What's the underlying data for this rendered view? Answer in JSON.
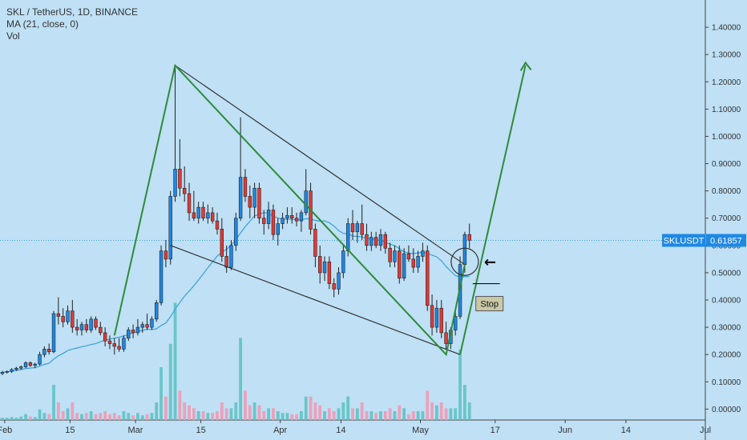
{
  "legend": {
    "title": "SKL / TetherUS, 1D, BINANCE",
    "ma": "MA (21, close, 0)",
    "vol": "Vol"
  },
  "colors": {
    "background": "#bfe0f5",
    "up": "#1e88e5",
    "down": "#e53935",
    "ma": "#3aa0d8",
    "trend": "#2e8b3a",
    "wedge": "#333333",
    "vol_up": "#5fc3c3",
    "vol_down": "#f29ab5"
  },
  "chart_data": {
    "type": "candlestick",
    "symbol": "SKLUSDT",
    "last_price": 0.61857,
    "last_price_label": "0.61857",
    "ylim": [
      -0.04,
      1.5
    ],
    "y_ticks": [
      0.0,
      0.1,
      0.2,
      0.3,
      0.4,
      0.5,
      0.6,
      0.7,
      0.8,
      0.9,
      1.0,
      1.1,
      1.2,
      1.3,
      1.4
    ],
    "y_tick_labels": [
      "0.00000",
      "0.10000",
      "0.20000",
      "0.30000",
      "0.40000",
      "0.50000",
      "0.60000",
      "0.70000",
      "0.80000",
      "0.90000",
      "1.00000",
      "1.10000",
      "1.20000",
      "1.30000",
      "1.40000"
    ],
    "x_ticks": [
      {
        "label": "Feb",
        "date": "2021-02-01"
      },
      {
        "label": "15",
        "date": "2021-02-15"
      },
      {
        "label": "Mar",
        "date": "2021-03-01"
      },
      {
        "label": "15",
        "date": "2021-03-15"
      },
      {
        "label": "Apr",
        "date": "2021-04-01"
      },
      {
        "label": "14",
        "date": "2021-04-14"
      },
      {
        "label": "May",
        "date": "2021-05-01"
      },
      {
        "label": "17",
        "date": "2021-05-17"
      },
      {
        "label": "Jun",
        "date": "2021-06-01"
      },
      {
        "label": "14",
        "date": "2021-06-14"
      },
      {
        "label": "Jul",
        "date": "2021-07-01"
      }
    ],
    "x_range": [
      "2021-01-31",
      "2021-07-01"
    ],
    "dates": [],
    "candles": [
      [
        0.13,
        0.14,
        0.125,
        0.135
      ],
      [
        0.135,
        0.142,
        0.13,
        0.138
      ],
      [
        0.138,
        0.15,
        0.133,
        0.145
      ],
      [
        0.145,
        0.155,
        0.14,
        0.15
      ],
      [
        0.15,
        0.16,
        0.145,
        0.155
      ],
      [
        0.155,
        0.175,
        0.15,
        0.17
      ],
      [
        0.17,
        0.175,
        0.155,
        0.16
      ],
      [
        0.16,
        0.17,
        0.15,
        0.165
      ],
      [
        0.165,
        0.21,
        0.16,
        0.2
      ],
      [
        0.2,
        0.23,
        0.19,
        0.22
      ],
      [
        0.22,
        0.24,
        0.2,
        0.21
      ],
      [
        0.21,
        0.36,
        0.205,
        0.35
      ],
      [
        0.35,
        0.41,
        0.31,
        0.34
      ],
      [
        0.34,
        0.37,
        0.3,
        0.32
      ],
      [
        0.32,
        0.38,
        0.31,
        0.36
      ],
      [
        0.36,
        0.4,
        0.28,
        0.3
      ],
      [
        0.3,
        0.33,
        0.27,
        0.29
      ],
      [
        0.29,
        0.32,
        0.27,
        0.31
      ],
      [
        0.31,
        0.33,
        0.28,
        0.29
      ],
      [
        0.29,
        0.34,
        0.28,
        0.33
      ],
      [
        0.33,
        0.34,
        0.29,
        0.3
      ],
      [
        0.3,
        0.32,
        0.27,
        0.28
      ],
      [
        0.28,
        0.3,
        0.23,
        0.25
      ],
      [
        0.25,
        0.27,
        0.22,
        0.24
      ],
      [
        0.24,
        0.26,
        0.2,
        0.23
      ],
      [
        0.23,
        0.26,
        0.21,
        0.22
      ],
      [
        0.22,
        0.27,
        0.21,
        0.26
      ],
      [
        0.26,
        0.3,
        0.25,
        0.29
      ],
      [
        0.29,
        0.31,
        0.26,
        0.28
      ],
      [
        0.28,
        0.33,
        0.27,
        0.3
      ],
      [
        0.3,
        0.32,
        0.28,
        0.31
      ],
      [
        0.31,
        0.35,
        0.29,
        0.3
      ],
      [
        0.3,
        0.34,
        0.29,
        0.33
      ],
      [
        0.33,
        0.4,
        0.32,
        0.39
      ],
      [
        0.39,
        0.6,
        0.38,
        0.58
      ],
      [
        0.58,
        0.62,
        0.52,
        0.55
      ],
      [
        0.55,
        0.8,
        0.53,
        0.78
      ],
      [
        0.78,
        1.26,
        0.76,
        0.88
      ],
      [
        0.88,
        0.99,
        0.78,
        0.81
      ],
      [
        0.81,
        0.89,
        0.76,
        0.79
      ],
      [
        0.79,
        0.83,
        0.69,
        0.72
      ],
      [
        0.72,
        0.8,
        0.69,
        0.7
      ],
      [
        0.7,
        0.76,
        0.68,
        0.74
      ],
      [
        0.74,
        0.76,
        0.69,
        0.7
      ],
      [
        0.7,
        0.75,
        0.68,
        0.72
      ],
      [
        0.72,
        0.74,
        0.68,
        0.69
      ],
      [
        0.69,
        0.72,
        0.64,
        0.66
      ],
      [
        0.66,
        0.7,
        0.54,
        0.56
      ],
      [
        0.56,
        0.6,
        0.5,
        0.52
      ],
      [
        0.52,
        0.62,
        0.51,
        0.6
      ],
      [
        0.6,
        0.72,
        0.58,
        0.7
      ],
      [
        0.7,
        1.07,
        0.69,
        0.85
      ],
      [
        0.85,
        0.88,
        0.76,
        0.78
      ],
      [
        0.78,
        0.82,
        0.7,
        0.74
      ],
      [
        0.74,
        0.83,
        0.7,
        0.81
      ],
      [
        0.81,
        0.83,
        0.68,
        0.7
      ],
      [
        0.7,
        0.73,
        0.64,
        0.68
      ],
      [
        0.68,
        0.76,
        0.66,
        0.73
      ],
      [
        0.73,
        0.75,
        0.62,
        0.64
      ],
      [
        0.64,
        0.7,
        0.6,
        0.68
      ],
      [
        0.68,
        0.72,
        0.66,
        0.7
      ],
      [
        0.7,
        0.74,
        0.68,
        0.71
      ],
      [
        0.71,
        0.74,
        0.68,
        0.7
      ],
      [
        0.7,
        0.72,
        0.67,
        0.69
      ],
      [
        0.69,
        0.73,
        0.65,
        0.72
      ],
      [
        0.72,
        0.88,
        0.71,
        0.8
      ],
      [
        0.8,
        0.83,
        0.64,
        0.66
      ],
      [
        0.66,
        0.68,
        0.52,
        0.56
      ],
      [
        0.56,
        0.6,
        0.46,
        0.5
      ],
      [
        0.5,
        0.56,
        0.47,
        0.54
      ],
      [
        0.54,
        0.56,
        0.44,
        0.46
      ],
      [
        0.46,
        0.48,
        0.41,
        0.44
      ],
      [
        0.44,
        0.52,
        0.42,
        0.5
      ],
      [
        0.5,
        0.6,
        0.48,
        0.58
      ],
      [
        0.58,
        0.7,
        0.56,
        0.68
      ],
      [
        0.68,
        0.73,
        0.62,
        0.65
      ],
      [
        0.65,
        0.69,
        0.61,
        0.68
      ],
      [
        0.68,
        0.75,
        0.62,
        0.64
      ],
      [
        0.64,
        0.68,
        0.58,
        0.6
      ],
      [
        0.6,
        0.65,
        0.58,
        0.63
      ],
      [
        0.63,
        0.65,
        0.59,
        0.6
      ],
      [
        0.6,
        0.66,
        0.58,
        0.64
      ],
      [
        0.64,
        0.65,
        0.57,
        0.59
      ],
      [
        0.59,
        0.61,
        0.52,
        0.54
      ],
      [
        0.54,
        0.6,
        0.52,
        0.58
      ],
      [
        0.58,
        0.6,
        0.46,
        0.48
      ],
      [
        0.48,
        0.59,
        0.47,
        0.57
      ],
      [
        0.57,
        0.6,
        0.54,
        0.55
      ],
      [
        0.55,
        0.59,
        0.5,
        0.52
      ],
      [
        0.52,
        0.58,
        0.5,
        0.56
      ],
      [
        0.56,
        0.61,
        0.54,
        0.58
      ],
      [
        0.58,
        0.6,
        0.36,
        0.38
      ],
      [
        0.38,
        0.42,
        0.27,
        0.3
      ],
      [
        0.3,
        0.4,
        0.28,
        0.37
      ],
      [
        0.37,
        0.4,
        0.26,
        0.28
      ],
      [
        0.28,
        0.32,
        0.22,
        0.24
      ],
      [
        0.24,
        0.3,
        0.22,
        0.29
      ],
      [
        0.29,
        0.36,
        0.27,
        0.34
      ],
      [
        0.34,
        0.56,
        0.33,
        0.53
      ],
      [
        0.53,
        0.65,
        0.5,
        0.64
      ],
      [
        0.64,
        0.68,
        0.59,
        0.619
      ]
    ],
    "volume": [
      [
        0.004,
        "up"
      ],
      [
        0.004,
        "up"
      ],
      [
        0.005,
        "up"
      ],
      [
        0.004,
        "up"
      ],
      [
        0.006,
        "up"
      ],
      [
        0.01,
        "up"
      ],
      [
        0.006,
        "down"
      ],
      [
        0.005,
        "up"
      ],
      [
        0.018,
        "up"
      ],
      [
        0.012,
        "up"
      ],
      [
        0.01,
        "down"
      ],
      [
        0.06,
        "up"
      ],
      [
        0.03,
        "down"
      ],
      [
        0.015,
        "down"
      ],
      [
        0.02,
        "up"
      ],
      [
        0.03,
        "down"
      ],
      [
        0.012,
        "down"
      ],
      [
        0.01,
        "up"
      ],
      [
        0.012,
        "down"
      ],
      [
        0.015,
        "up"
      ],
      [
        0.01,
        "down"
      ],
      [
        0.012,
        "down"
      ],
      [
        0.015,
        "down"
      ],
      [
        0.01,
        "down"
      ],
      [
        0.012,
        "down"
      ],
      [
        0.008,
        "down"
      ],
      [
        0.015,
        "up"
      ],
      [
        0.012,
        "up"
      ],
      [
        0.008,
        "down"
      ],
      [
        0.012,
        "up"
      ],
      [
        0.008,
        "up"
      ],
      [
        0.01,
        "down"
      ],
      [
        0.012,
        "up"
      ],
      [
        0.03,
        "up"
      ],
      [
        0.09,
        "up"
      ],
      [
        0.04,
        "down"
      ],
      [
        0.13,
        "up"
      ],
      [
        0.2,
        "up"
      ],
      [
        0.05,
        "down"
      ],
      [
        0.03,
        "down"
      ],
      [
        0.025,
        "down"
      ],
      [
        0.02,
        "down"
      ],
      [
        0.015,
        "up"
      ],
      [
        0.015,
        "down"
      ],
      [
        0.012,
        "up"
      ],
      [
        0.012,
        "down"
      ],
      [
        0.015,
        "down"
      ],
      [
        0.03,
        "down"
      ],
      [
        0.02,
        "down"
      ],
      [
        0.02,
        "up"
      ],
      [
        0.03,
        "up"
      ],
      [
        0.14,
        "up"
      ],
      [
        0.05,
        "down"
      ],
      [
        0.025,
        "down"
      ],
      [
        0.03,
        "up"
      ],
      [
        0.025,
        "down"
      ],
      [
        0.015,
        "down"
      ],
      [
        0.02,
        "up"
      ],
      [
        0.02,
        "down"
      ],
      [
        0.015,
        "up"
      ],
      [
        0.012,
        "up"
      ],
      [
        0.012,
        "up"
      ],
      [
        0.01,
        "down"
      ],
      [
        0.01,
        "down"
      ],
      [
        0.015,
        "up"
      ],
      [
        0.04,
        "up"
      ],
      [
        0.04,
        "down"
      ],
      [
        0.03,
        "down"
      ],
      [
        0.025,
        "down"
      ],
      [
        0.015,
        "up"
      ],
      [
        0.02,
        "down"
      ],
      [
        0.015,
        "down"
      ],
      [
        0.02,
        "up"
      ],
      [
        0.03,
        "up"
      ],
      [
        0.04,
        "up"
      ],
      [
        0.02,
        "down"
      ],
      [
        0.02,
        "up"
      ],
      [
        0.03,
        "down"
      ],
      [
        0.015,
        "down"
      ],
      [
        0.015,
        "up"
      ],
      [
        0.012,
        "down"
      ],
      [
        0.015,
        "up"
      ],
      [
        0.015,
        "down"
      ],
      [
        0.02,
        "down"
      ],
      [
        0.015,
        "up"
      ],
      [
        0.025,
        "down"
      ],
      [
        0.02,
        "up"
      ],
      [
        0.01,
        "down"
      ],
      [
        0.015,
        "down"
      ],
      [
        0.015,
        "up"
      ],
      [
        0.015,
        "up"
      ],
      [
        0.05,
        "down"
      ],
      [
        0.03,
        "down"
      ],
      [
        0.025,
        "up"
      ],
      [
        0.03,
        "down"
      ],
      [
        0.02,
        "down"
      ],
      [
        0.02,
        "up"
      ],
      [
        0.02,
        "up"
      ],
      [
        0.12,
        "up"
      ],
      [
        0.06,
        "up"
      ],
      [
        0.03,
        "up"
      ]
    ],
    "annotations": {
      "stop_label": "Stop",
      "stop_price": 0.46,
      "pointer_glyph": "🡄"
    }
  }
}
